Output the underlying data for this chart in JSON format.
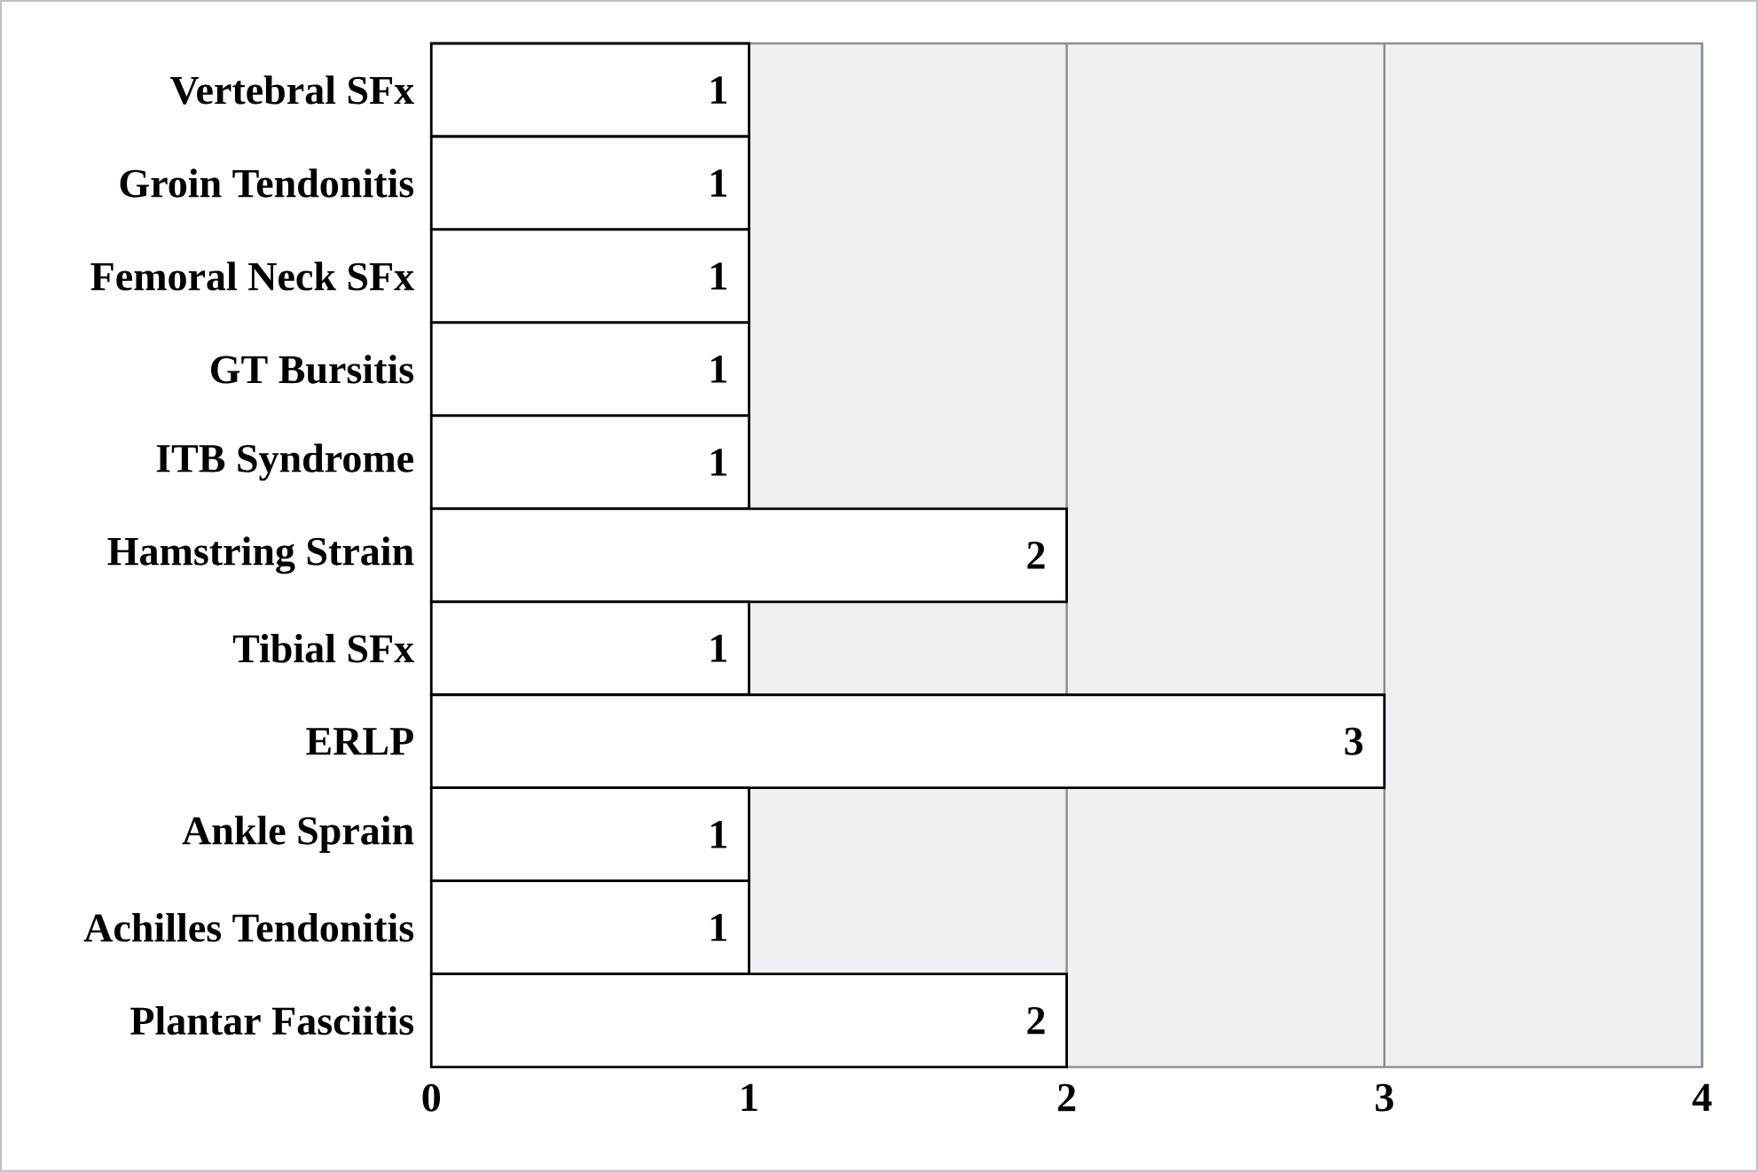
{
  "chart_data": {
    "type": "bar",
    "orientation": "horizontal",
    "categories": [
      "Vertebral SFx",
      "Groin Tendonitis",
      "Femoral Neck SFx",
      "GT Bursitis",
      "ITB Syndrome",
      "Hamstring Strain",
      "Tibial SFx",
      "ERLP",
      "Ankle Sprain",
      "Achilles Tendonitis",
      "Plantar Fasciitis"
    ],
    "values": [
      1,
      1,
      1,
      1,
      1,
      2,
      1,
      3,
      1,
      1,
      2
    ],
    "color": "#ffffff",
    "xlim": [
      0,
      4
    ],
    "xticks": [
      0,
      1,
      2,
      3,
      4
    ],
    "grid": "x",
    "data_labels": true
  }
}
